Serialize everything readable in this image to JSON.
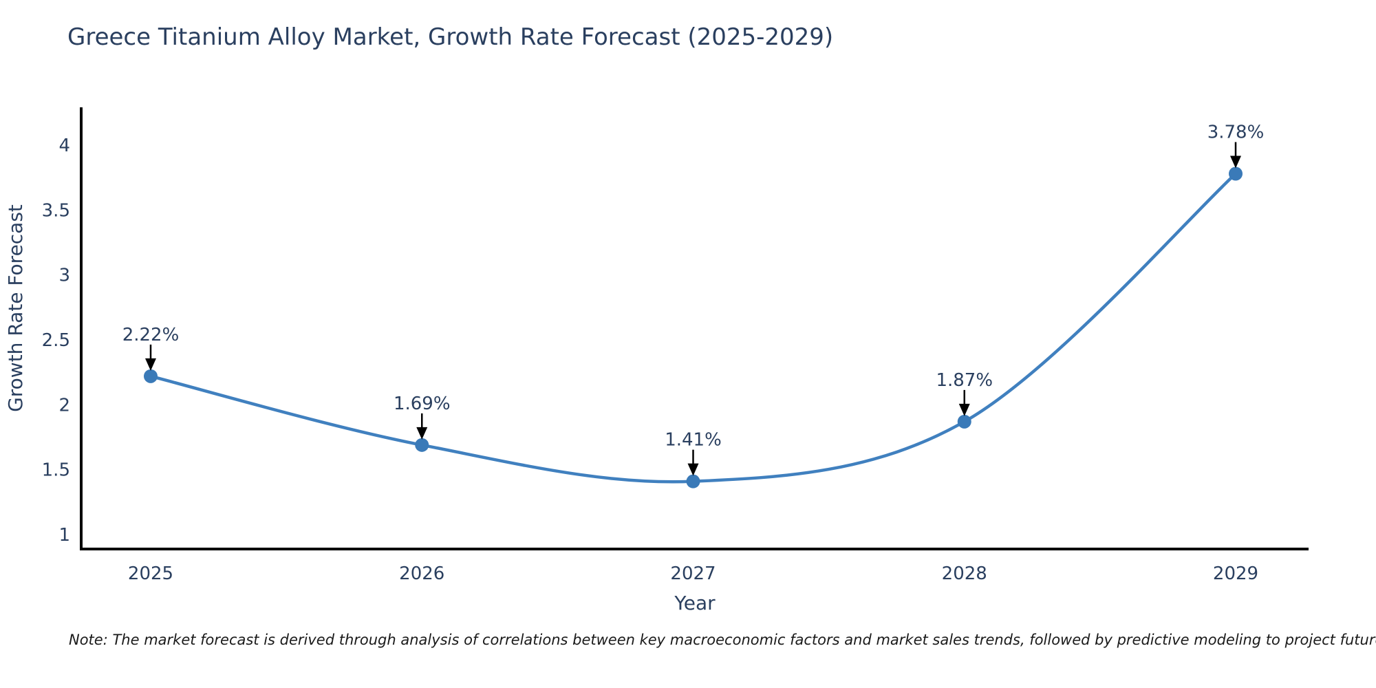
{
  "title": "Greece Titanium Alloy Market, Growth Rate Forecast (2025-2029)",
  "note": "Note: The market forecast is derived through analysis of correlations between key macroeconomic factors and market sales trends, followed by predictive modeling to project future sales",
  "chart_data": {
    "type": "line",
    "title": "Greece Titanium Alloy Market, Growth Rate Forecast (2025-2029)",
    "xlabel": "Year",
    "ylabel": "Growth Rate Forecast",
    "categories": [
      "2025",
      "2026",
      "2027",
      "2028",
      "2029"
    ],
    "values": [
      2.22,
      1.69,
      1.41,
      1.87,
      3.78
    ],
    "point_labels": [
      "2.22%",
      "1.69%",
      "1.41%",
      "1.87%",
      "3.78%"
    ],
    "y_ticks": [
      1,
      1.5,
      2,
      2.5,
      3,
      3.5,
      4
    ],
    "ylim": [
      0.89,
      4.3
    ],
    "grid": false,
    "legend_position": "none",
    "curve": "spline",
    "line_color": "#4080bf",
    "marker_color": "#3a7ab8",
    "axis_color": "#000000",
    "text_color": "#2a3f5f",
    "annotation_arrow_color": "#000000"
  }
}
